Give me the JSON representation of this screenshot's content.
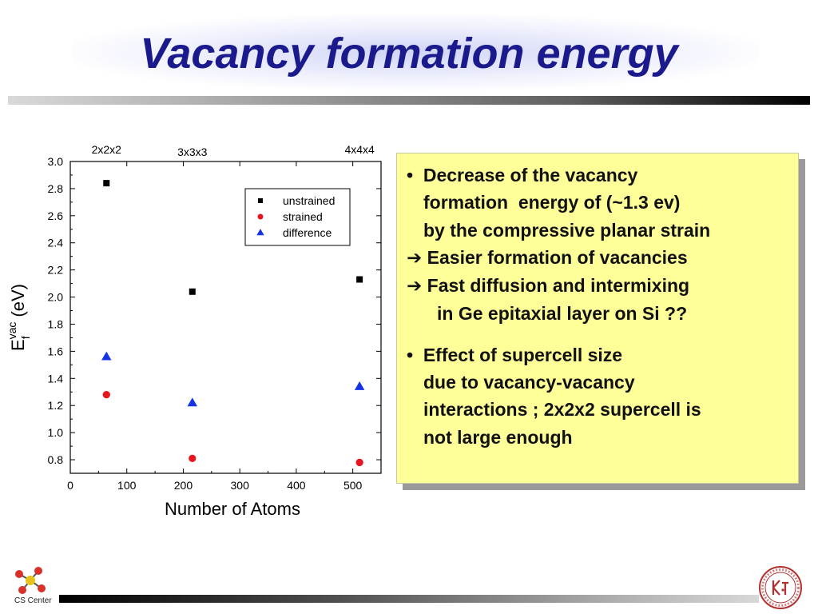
{
  "title": "Vacancy formation energy",
  "chart_data": {
    "type": "scatter",
    "xlabel": "Number of Atoms",
    "ylabel_main": "E",
    "ylabel_sub": "f",
    "ylabel_sup": "vac",
    "ylabel_unit": "(eV)",
    "xlim": [
      0,
      550
    ],
    "ylim": [
      0.7,
      3.0
    ],
    "x_ticks": [
      "0",
      "100",
      "200",
      "300",
      "400",
      "500"
    ],
    "x_tick_values": [
      0,
      100,
      200,
      300,
      400,
      500
    ],
    "y_ticks": [
      "0.8",
      "1.0",
      "1.2",
      "1.4",
      "1.6",
      "1.8",
      "2.0",
      "2.2",
      "2.4",
      "2.6",
      "2.8",
      "3.0"
    ],
    "y_tick_values": [
      0.8,
      1.0,
      1.2,
      1.4,
      1.6,
      1.8,
      2.0,
      2.2,
      2.4,
      2.6,
      2.8,
      3.0
    ],
    "top_labels": [
      "2x2x2",
      "3x3x3",
      "4x4x4"
    ],
    "legend_position": "top-right",
    "series": [
      {
        "name": "unstrained",
        "marker": "square",
        "color": "#000000",
        "x": [
          64,
          216,
          512
        ],
        "y": [
          2.84,
          2.04,
          2.13
        ]
      },
      {
        "name": "strained",
        "marker": "circle",
        "color": "#e8141e",
        "x": [
          64,
          216,
          512
        ],
        "y": [
          1.28,
          0.81,
          0.78
        ]
      },
      {
        "name": "difference",
        "marker": "triangle",
        "color": "#1432e6",
        "x": [
          64,
          216,
          512
        ],
        "y": [
          1.56,
          1.22,
          1.34
        ]
      }
    ]
  },
  "notes": {
    "bullet": "•",
    "arrow": "➔",
    "lines": [
      "Decrease of the vacancy",
      "formation  energy of (~1.3 ev)",
      "by the compressive planar strain",
      "Easier formation of vacancies",
      "Fast diffusion and intermixing",
      "in Ge epitaxial layer on Si ??",
      "Effect of supercell size",
      "due to vacancy-vacancy",
      "interactions ; 2x2x2 supercell is",
      "not large enough"
    ]
  },
  "footer": {
    "logo_label": "CS Center"
  }
}
